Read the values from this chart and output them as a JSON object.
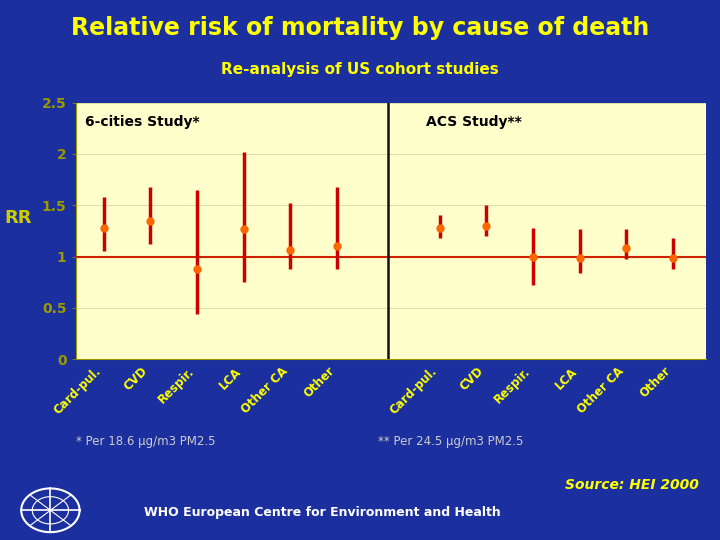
{
  "title": "Relative risk of mortality by cause of death",
  "subtitle": "Re-analysis of US cohort studies",
  "ylabel": "RR",
  "bg_color": "#1b2f9e",
  "plot_bg": "#ffffcc",
  "title_color": "#ffff00",
  "subtitle_color": "#ffff00",
  "ylabel_color": "#cccc00",
  "tick_color": "#999900",
  "label_color": "#ffff00",
  "note_color": "#cccccc",
  "source_color": "#ffff00",
  "categories": [
    "Card-pul.",
    "CVD",
    "Respir.",
    "LCA",
    "Other CA",
    "Other"
  ],
  "six_cities": {
    "label": "6-cities Study*",
    "centers": [
      1.28,
      1.35,
      0.88,
      1.27,
      1.06,
      1.1
    ],
    "lower": [
      1.05,
      1.12,
      0.44,
      0.75,
      0.88,
      0.88
    ],
    "upper": [
      1.58,
      1.68,
      1.65,
      2.02,
      1.52,
      1.68
    ]
  },
  "acs": {
    "label": "ACS Study**",
    "centers": [
      1.28,
      1.3,
      1.0,
      0.99,
      1.08,
      0.99
    ],
    "lower": [
      1.18,
      1.2,
      0.72,
      0.84,
      0.98,
      0.88
    ],
    "upper": [
      1.4,
      1.5,
      1.28,
      1.27,
      1.27,
      1.18
    ]
  },
  "ylim": [
    0,
    2.5
  ],
  "yticks": [
    0,
    0.5,
    1,
    1.5,
    2,
    2.5
  ],
  "ref_line": 1.0,
  "note1": "* Per 18.6 μg/m3 PM2.5",
  "note2": "** Per 24.5 μg/m3 PM2.5",
  "source": "Source: HEI 2000",
  "footer": "WHO European Centre for Environment and Health",
  "marker_color": "#ff6600",
  "line_color": "#cc0000",
  "ref_color": "#cc2200",
  "divider_color": "#111111",
  "grid_color": "#ddddaa"
}
